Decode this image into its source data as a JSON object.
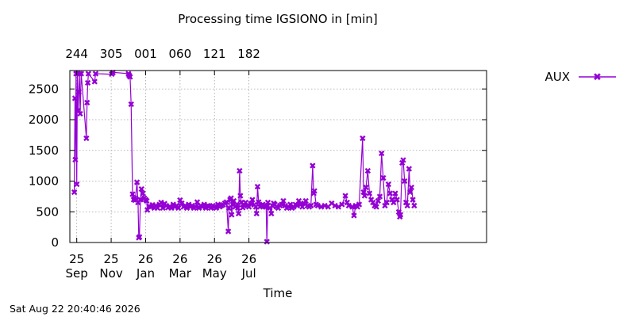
{
  "timestamp": "Sat Aug 22 20:40:46 2026",
  "chart_data": {
    "type": "line",
    "title": "Processing time IGSIONO in [min]",
    "xlabel": "Time",
    "ylabel": "",
    "ylim": [
      0,
      2800
    ],
    "xlim": [
      0,
      12.1
    ],
    "grid": true,
    "legend_position": "top-right-outside",
    "y_ticks": [
      0,
      500,
      1000,
      1500,
      2000,
      2500
    ],
    "x_ticks": [
      {
        "x": 0.2,
        "day": "25",
        "month": "Sep"
      },
      {
        "x": 1.2,
        "day": "25",
        "month": "Nov"
      },
      {
        "x": 2.2,
        "day": "26",
        "month": "Jan"
      },
      {
        "x": 3.2,
        "day": "26",
        "month": "Mar"
      },
      {
        "x": 4.2,
        "day": "26",
        "month": "May"
      },
      {
        "x": 5.2,
        "day": "26",
        "month": "Jul"
      }
    ],
    "x2_ticks": [
      {
        "x": 0.2,
        "label": "244"
      },
      {
        "x": 1.2,
        "label": "305"
      },
      {
        "x": 2.2,
        "label": "001"
      },
      {
        "x": 3.2,
        "label": "060"
      },
      {
        "x": 4.2,
        "label": "121"
      },
      {
        "x": 5.2,
        "label": "182"
      }
    ],
    "series": [
      {
        "name": "AUX",
        "color": "#9400d3",
        "points": [
          [
            0.13,
            820
          ],
          [
            0.15,
            2350
          ],
          [
            0.16,
            1350
          ],
          [
            0.18,
            2750
          ],
          [
            0.2,
            950
          ],
          [
            0.22,
            2750
          ],
          [
            0.24,
            2150
          ],
          [
            0.26,
            2450
          ],
          [
            0.28,
            2750
          ],
          [
            0.3,
            2100
          ],
          [
            0.33,
            2750
          ],
          [
            0.48,
            1700
          ],
          [
            0.5,
            2280
          ],
          [
            0.52,
            2600
          ],
          [
            0.54,
            2750
          ],
          [
            0.72,
            2620
          ],
          [
            0.75,
            2750
          ],
          [
            1.22,
            2740
          ],
          [
            1.25,
            2770
          ],
          [
            1.7,
            2750
          ],
          [
            1.72,
            2720
          ],
          [
            1.75,
            2700
          ],
          [
            1.78,
            2250
          ],
          [
            1.82,
            790
          ],
          [
            1.85,
            700
          ],
          [
            1.88,
            720
          ],
          [
            1.9,
            690
          ],
          [
            1.95,
            980
          ],
          [
            1.98,
            650
          ],
          [
            2.0,
            80
          ],
          [
            2.02,
            90
          ],
          [
            2.05,
            700
          ],
          [
            2.08,
            870
          ],
          [
            2.12,
            800
          ],
          [
            2.16,
            720
          ],
          [
            2.2,
            700
          ],
          [
            2.23,
            680
          ],
          [
            2.25,
            530
          ],
          [
            2.3,
            590
          ],
          [
            2.35,
            580
          ],
          [
            2.4,
            610
          ],
          [
            2.45,
            560
          ],
          [
            2.5,
            600
          ],
          [
            2.55,
            560
          ],
          [
            2.6,
            620
          ],
          [
            2.65,
            650
          ],
          [
            2.7,
            560
          ],
          [
            2.75,
            630
          ],
          [
            2.8,
            600
          ],
          [
            2.85,
            570
          ],
          [
            2.9,
            590
          ],
          [
            2.95,
            560
          ],
          [
            3.0,
            620
          ],
          [
            3.05,
            580
          ],
          [
            3.1,
            600
          ],
          [
            3.15,
            560
          ],
          [
            3.2,
            690
          ],
          [
            3.25,
            640
          ],
          [
            3.3,
            580
          ],
          [
            3.35,
            600
          ],
          [
            3.4,
            560
          ],
          [
            3.45,
            620
          ],
          [
            3.5,
            580
          ],
          [
            3.55,
            600
          ],
          [
            3.6,
            560
          ],
          [
            3.65,
            580
          ],
          [
            3.7,
            660
          ],
          [
            3.75,
            560
          ],
          [
            3.8,
            600
          ],
          [
            3.85,
            580
          ],
          [
            3.9,
            620
          ],
          [
            3.95,
            560
          ],
          [
            4.0,
            600
          ],
          [
            4.05,
            590
          ],
          [
            4.1,
            560
          ],
          [
            4.15,
            600
          ],
          [
            4.2,
            580
          ],
          [
            4.25,
            560
          ],
          [
            4.3,
            620
          ],
          [
            4.35,
            580
          ],
          [
            4.4,
            600
          ],
          [
            4.45,
            610
          ],
          [
            4.5,
            640
          ],
          [
            4.55,
            660
          ],
          [
            4.6,
            180
          ],
          [
            4.62,
            560
          ],
          [
            4.65,
            700
          ],
          [
            4.68,
            720
          ],
          [
            4.7,
            450
          ],
          [
            4.73,
            620
          ],
          [
            4.76,
            680
          ],
          [
            4.8,
            580
          ],
          [
            4.85,
            620
          ],
          [
            4.88,
            560
          ],
          [
            4.9,
            470
          ],
          [
            4.93,
            1170
          ],
          [
            4.95,
            760
          ],
          [
            4.98,
            650
          ],
          [
            5.02,
            570
          ],
          [
            5.06,
            610
          ],
          [
            5.1,
            650
          ],
          [
            5.15,
            600
          ],
          [
            5.2,
            580
          ],
          [
            5.25,
            630
          ],
          [
            5.3,
            700
          ],
          [
            5.35,
            610
          ],
          [
            5.4,
            580
          ],
          [
            5.42,
            470
          ],
          [
            5.45,
            910
          ],
          [
            5.48,
            660
          ],
          [
            5.52,
            580
          ],
          [
            5.56,
            600
          ],
          [
            5.6,
            620
          ],
          [
            5.65,
            600
          ],
          [
            5.68,
            580
          ],
          [
            5.7,
            580
          ],
          [
            5.72,
            0
          ],
          [
            5.75,
            650
          ],
          [
            5.8,
            560
          ],
          [
            5.85,
            470
          ],
          [
            5.88,
            600
          ],
          [
            5.92,
            640
          ],
          [
            5.95,
            620
          ],
          [
            6.0,
            580
          ],
          [
            6.05,
            560
          ],
          [
            6.1,
            600
          ],
          [
            6.15,
            620
          ],
          [
            6.2,
            680
          ],
          [
            6.25,
            600
          ],
          [
            6.3,
            560
          ],
          [
            6.35,
            580
          ],
          [
            6.4,
            620
          ],
          [
            6.45,
            560
          ],
          [
            6.5,
            580
          ],
          [
            6.55,
            620
          ],
          [
            6.6,
            600
          ],
          [
            6.65,
            680
          ],
          [
            6.7,
            620
          ],
          [
            6.75,
            580
          ],
          [
            6.8,
            640
          ],
          [
            6.85,
            680
          ],
          [
            6.9,
            600
          ],
          [
            6.95,
            580
          ],
          [
            7.0,
            600
          ],
          [
            7.05,
            1250
          ],
          [
            7.08,
            800
          ],
          [
            7.1,
            840
          ],
          [
            7.15,
            620
          ],
          [
            7.2,
            600
          ],
          [
            7.3,
            580
          ],
          [
            7.4,
            600
          ],
          [
            7.5,
            580
          ],
          [
            7.6,
            640
          ],
          [
            7.7,
            600
          ],
          [
            7.8,
            580
          ],
          [
            7.9,
            620
          ],
          [
            8.0,
            760
          ],
          [
            8.05,
            650
          ],
          [
            8.1,
            600
          ],
          [
            8.2,
            580
          ],
          [
            8.25,
            440
          ],
          [
            8.3,
            600
          ],
          [
            8.35,
            580
          ],
          [
            8.4,
            620
          ],
          [
            8.5,
            1700
          ],
          [
            8.53,
            820
          ],
          [
            8.56,
            760
          ],
          [
            8.6,
            900
          ],
          [
            8.65,
            1170
          ],
          [
            8.7,
            800
          ],
          [
            8.75,
            700
          ],
          [
            8.8,
            650
          ],
          [
            8.85,
            600
          ],
          [
            8.9,
            580
          ],
          [
            8.95,
            680
          ],
          [
            9.0,
            750
          ],
          [
            9.05,
            1450
          ],
          [
            9.1,
            1050
          ],
          [
            9.15,
            600
          ],
          [
            9.2,
            650
          ],
          [
            9.25,
            950
          ],
          [
            9.3,
            800
          ],
          [
            9.35,
            700
          ],
          [
            9.4,
            650
          ],
          [
            9.45,
            800
          ],
          [
            9.5,
            700
          ],
          [
            9.55,
            500
          ],
          [
            9.58,
            420
          ],
          [
            9.6,
            450
          ],
          [
            9.65,
            1300
          ],
          [
            9.68,
            1340
          ],
          [
            9.72,
            1000
          ],
          [
            9.76,
            650
          ],
          [
            9.8,
            600
          ],
          [
            9.85,
            1200
          ],
          [
            9.88,
            820
          ],
          [
            9.92,
            900
          ],
          [
            9.96,
            700
          ],
          [
            10.0,
            600
          ]
        ]
      }
    ]
  }
}
